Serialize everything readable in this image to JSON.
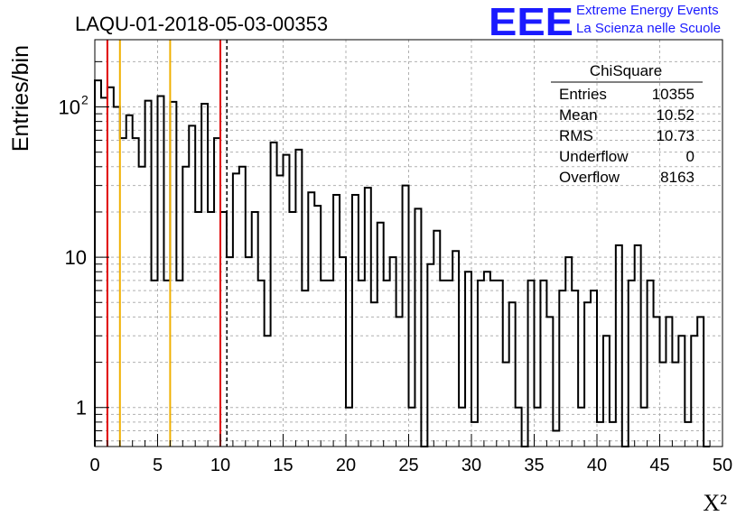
{
  "title": "LAQU-01-2018-05-03-00353",
  "logo": {
    "letters": "EEE",
    "line1": "Extreme Energy Events",
    "line2": "La Scienza nelle Scuole",
    "color": "#1a1aff"
  },
  "stats": {
    "name": "ChiSquare",
    "rows": [
      {
        "label": "Entries",
        "value": "10355"
      },
      {
        "label": "Mean",
        "value": "10.52"
      },
      {
        "label": "RMS",
        "value": "10.73"
      },
      {
        "label": "Underflow",
        "value": "0"
      },
      {
        "label": "Overflow",
        "value": "8163"
      }
    ]
  },
  "chart_data": {
    "type": "bar",
    "histogram": true,
    "xlabel": "X²",
    "ylabel": "Entries/bin",
    "xlim": [
      0,
      50
    ],
    "ylim": [
      0.55,
      280
    ],
    "yscale": "log",
    "xticks": [
      0,
      5,
      10,
      15,
      20,
      25,
      30,
      35,
      40,
      45,
      50
    ],
    "xtick_labels": [
      "0",
      "5",
      "10",
      "15",
      "20",
      "25",
      "30",
      "35",
      "40",
      "45",
      "50"
    ],
    "yticks": [
      1,
      10,
      100
    ],
    "ytick_labels": [
      "1",
      "10",
      "10²"
    ],
    "grid": true,
    "bin_width": 0.5,
    "values": [
      150,
      115,
      135,
      100,
      62,
      88,
      62,
      40,
      110,
      7,
      118,
      7,
      108,
      7,
      40,
      75,
      20,
      105,
      20,
      62,
      20,
      10,
      36,
      40,
      10,
      20,
      7,
      3,
      58,
      35,
      48,
      20,
      52,
      6,
      27,
      22,
      7,
      7,
      26,
      10,
      1,
      26,
      7,
      29,
      5,
      17,
      7,
      10,
      4,
      30,
      1,
      21,
      0.5,
      9,
      15,
      7,
      7,
      11,
      1,
      8,
      0.8,
      7,
      8,
      7,
      7,
      2,
      5,
      1,
      0.5,
      7,
      1,
      7,
      4,
      0.7,
      6,
      10,
      6,
      1,
      5,
      6,
      0.8,
      3,
      0.8,
      12,
      0.5,
      7,
      12,
      1,
      7,
      4,
      2,
      4,
      2,
      3,
      0.8,
      3,
      4,
      0.5
    ],
    "vlines": [
      {
        "x": 1,
        "color": "#e00000",
        "style": "solid"
      },
      {
        "x": 2,
        "color": "#f0b000",
        "style": "solid"
      },
      {
        "x": 6,
        "color": "#f0b000",
        "style": "solid"
      },
      {
        "x": 10,
        "color": "#e00000",
        "style": "solid"
      },
      {
        "x": 10.52,
        "color": "#000000",
        "style": "dashed"
      }
    ],
    "line_color": "#000000"
  }
}
